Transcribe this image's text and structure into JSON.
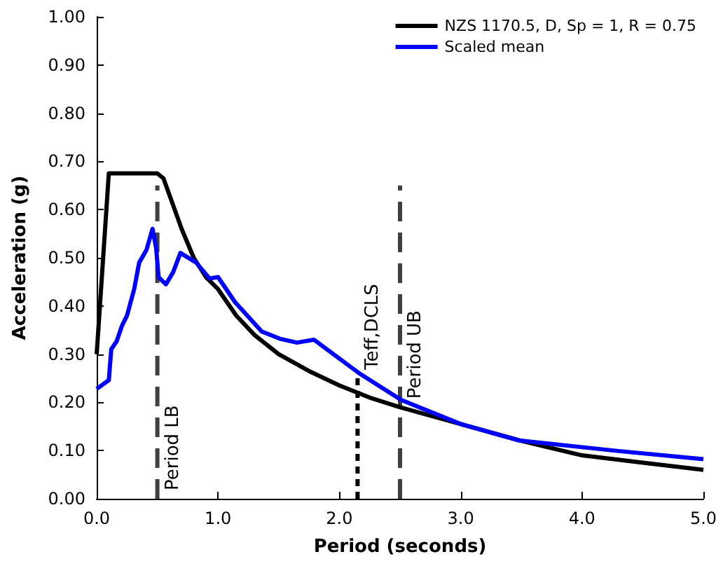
{
  "chart_data": {
    "type": "line",
    "xlabel": "Period (seconds)",
    "ylabel": "Acceleration (g)",
    "xlim": [
      0,
      5
    ],
    "xticks": [
      {
        "value": 0,
        "label": "0.0"
      },
      {
        "value": 1,
        "label": "1.0"
      },
      {
        "value": 2,
        "label": "2.0"
      },
      {
        "value": 3,
        "label": "3.0"
      },
      {
        "value": 4,
        "label": "4.0"
      },
      {
        "value": 5,
        "label": "5.0"
      }
    ],
    "ylim": [
      0,
      1
    ],
    "yticks": [
      {
        "value": 0,
        "label": "0.00"
      },
      {
        "value": 0.1,
        "label": "0.10"
      },
      {
        "value": 0.2,
        "label": "0.20"
      },
      {
        "value": 0.3,
        "label": "0.30"
      },
      {
        "value": 0.4,
        "label": "0.40"
      },
      {
        "value": 0.5,
        "label": "0.50"
      },
      {
        "value": 0.6,
        "label": "0.60"
      },
      {
        "value": 0.7,
        "label": "0.70"
      },
      {
        "value": 0.8,
        "label": "0.80"
      },
      {
        "value": 0.9,
        "label": "0.90"
      },
      {
        "value": 1,
        "label": "1.00"
      }
    ],
    "grid": false,
    "legend": "top right",
    "marker": "none",
    "line_style": "solid",
    "series": [
      {
        "name": "NZS 1170.5, D, Sp = 1, R = 0.75",
        "color": "#000000",
        "x": [
          0,
          0.1,
          0.5,
          0.55,
          0.6,
          0.7,
          0.8,
          0.9,
          1.0,
          1.15,
          1.3,
          1.5,
          1.75,
          2.0,
          2.25,
          2.5,
          3.0,
          3.5,
          4.0,
          4.5,
          5.0
        ],
        "values": [
          0.3,
          0.675,
          0.675,
          0.665,
          0.63,
          0.56,
          0.5,
          0.46,
          0.435,
          0.38,
          0.34,
          0.3,
          0.265,
          0.235,
          0.21,
          0.19,
          0.155,
          0.12,
          0.09,
          0.075,
          0.06
        ]
      },
      {
        "name": "Scaled mean",
        "color": "#0000ff",
        "x": [
          0,
          0.1,
          0.12,
          0.165,
          0.21,
          0.25,
          0.31,
          0.35,
          0.41,
          0.46,
          0.49,
          0.51,
          0.57,
          0.63,
          0.69,
          0.82,
          0.93,
          1.0,
          1.14,
          1.36,
          1.51,
          1.65,
          1.79,
          2.16,
          2.51,
          3.0,
          3.48,
          4.0,
          4.3,
          5.0
        ],
        "values": [
          0.228,
          0.246,
          0.31,
          0.327,
          0.36,
          0.38,
          0.436,
          0.49,
          0.516,
          0.56,
          0.52,
          0.46,
          0.445,
          0.47,
          0.51,
          0.49,
          0.457,
          0.46,
          0.408,
          0.347,
          0.332,
          0.324,
          0.33,
          0.261,
          0.205,
          0.155,
          0.121,
          0.107,
          0.099,
          0.082
        ]
      },
      {
        "color": "#404040",
        "line_style": "dashed",
        "x": [
          0.5,
          0.5
        ],
        "values": [
          0,
          0.65
        ]
      },
      {
        "color": "#000000",
        "line_style": "dotted",
        "x": [
          2.15,
          2.15
        ],
        "values": [
          0,
          0.25
        ]
      },
      {
        "color": "#404040",
        "line_style": "dashed",
        "x": [
          2.5,
          2.5
        ],
        "values": [
          0,
          0.65
        ]
      }
    ],
    "annotations": [
      {
        "text": "Period LB",
        "x": 0.5,
        "y": 0
      },
      {
        "text": "Teff,DCLS",
        "x": 2.15,
        "y": 0.25
      },
      {
        "text": "Period UB",
        "x": 2.5,
        "y": 0.19
      }
    ]
  }
}
